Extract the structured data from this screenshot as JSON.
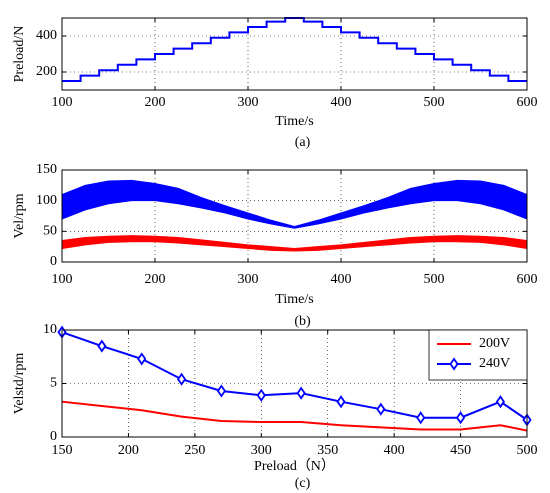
{
  "chart_data": [
    {
      "type": "line",
      "xlabel": "Time/s",
      "ylabel": "Preload/N",
      "caption": "(a)",
      "x": [
        100,
        120,
        120,
        140,
        140,
        160,
        160,
        180,
        180,
        200,
        200,
        220,
        220,
        240,
        240,
        260,
        260,
        280,
        280,
        300,
        300,
        320,
        320,
        340,
        340,
        360,
        360,
        380,
        380,
        400,
        400,
        420,
        420,
        440,
        440,
        460,
        460,
        480,
        480,
        500,
        500,
        520,
        520,
        540,
        540,
        560,
        560,
        580,
        580,
        600
      ],
      "series": [
        {
          "color": "#0000ff",
          "values": [
            150,
            150,
            180,
            180,
            210,
            210,
            240,
            240,
            270,
            270,
            300,
            300,
            330,
            330,
            360,
            360,
            390,
            390,
            420,
            420,
            450,
            450,
            480,
            480,
            500,
            500,
            480,
            480,
            450,
            450,
            420,
            420,
            390,
            390,
            360,
            360,
            330,
            330,
            300,
            300,
            270,
            270,
            240,
            240,
            210,
            210,
            180,
            180,
            150,
            150
          ]
        }
      ],
      "xlim": [
        100,
        600
      ],
      "xticks": [
        100,
        200,
        300,
        400,
        500,
        600
      ],
      "ylim": [
        100,
        500
      ],
      "yticks": [
        200,
        400
      ],
      "grid": true
    },
    {
      "type": "band",
      "xlabel": "Time/s",
      "ylabel": "Vel/rpm",
      "caption": "(b)",
      "x": [
        100,
        125,
        150,
        175,
        200,
        225,
        250,
        275,
        300,
        325,
        350,
        375,
        400,
        425,
        450,
        475,
        500,
        525,
        550,
        575,
        600
      ],
      "series": [
        {
          "color": "#0000ff",
          "upper": [
            110,
            125,
            132,
            133,
            128,
            120,
            105,
            92,
            80,
            68,
            58,
            68,
            80,
            92,
            105,
            120,
            128,
            133,
            132,
            125,
            110
          ],
          "lower": [
            70,
            85,
            95,
            100,
            100,
            95,
            88,
            80,
            70,
            62,
            55,
            62,
            70,
            80,
            88,
            95,
            100,
            100,
            95,
            85,
            70
          ]
        },
        {
          "color": "#ff0000",
          "upper": [
            35,
            40,
            42,
            43,
            42,
            40,
            36,
            32,
            28,
            25,
            22,
            25,
            28,
            32,
            36,
            40,
            42,
            43,
            42,
            40,
            35
          ],
          "lower": [
            22,
            28,
            32,
            33,
            33,
            31,
            28,
            25,
            22,
            19,
            18,
            19,
            22,
            25,
            28,
            31,
            33,
            33,
            32,
            28,
            22
          ]
        }
      ],
      "xlim": [
        100,
        600
      ],
      "xticks": [
        100,
        200,
        300,
        400,
        500,
        600
      ],
      "ylim": [
        0,
        150
      ],
      "yticks": [
        0,
        50,
        100,
        150
      ],
      "grid": true
    },
    {
      "type": "line",
      "xlabel": "Preload（N）",
      "ylabel": "Velstd/rpm",
      "caption": "(c)",
      "x": [
        150,
        180,
        210,
        240,
        270,
        300,
        330,
        360,
        390,
        420,
        450,
        480,
        500
      ],
      "series": [
        {
          "name": "200V",
          "color": "#ff0000",
          "values": [
            3.3,
            2.9,
            2.5,
            1.9,
            1.5,
            1.4,
            1.4,
            1.1,
            0.9,
            0.7,
            0.7,
            1.1,
            0.6
          ]
        },
        {
          "name": "240V",
          "color": "#0000ff",
          "marker": "diamond",
          "values": [
            9.8,
            8.5,
            7.3,
            5.4,
            4.3,
            3.9,
            4.1,
            3.3,
            2.6,
            1.8,
            1.8,
            3.3,
            1.6
          ]
        }
      ],
      "xlim": [
        150,
        500
      ],
      "xticks": [
        150,
        200,
        250,
        300,
        350,
        400,
        450,
        500
      ],
      "ylim": [
        0,
        10
      ],
      "yticks": [
        0,
        5,
        10
      ],
      "grid": true,
      "legend": "upper right"
    }
  ]
}
